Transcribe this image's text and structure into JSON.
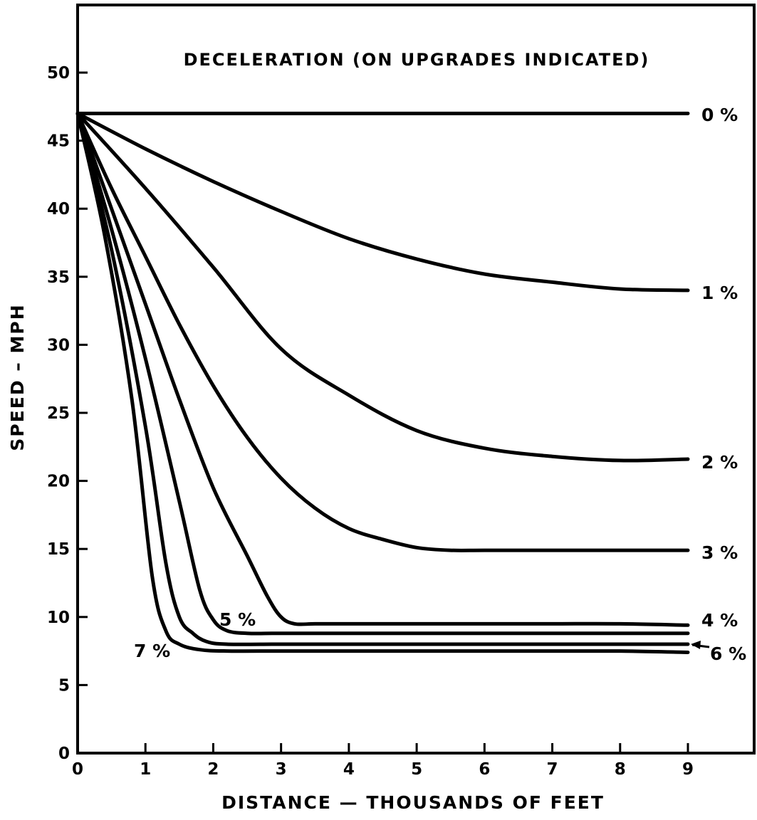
{
  "chart_data": {
    "type": "line",
    "title": "DECELERATION  (ON  UPGRADES  INDICATED)",
    "xlabel": "DISTANCE — THOUSANDS  OF  FEET",
    "ylabel": "SPEED – MPH",
    "xlim": [
      0,
      10
    ],
    "ylim": [
      0,
      55
    ],
    "xticks": [
      0,
      1,
      2,
      3,
      4,
      5,
      6,
      7,
      8,
      9
    ],
    "yticks": [
      0,
      5,
      10,
      15,
      20,
      25,
      30,
      35,
      40,
      45,
      50
    ],
    "grid": false,
    "legend": "none",
    "series": [
      {
        "name": "0 %",
        "x": [
          0,
          9
        ],
        "y": [
          47,
          47
        ]
      },
      {
        "name": "1 %",
        "x": [
          0,
          1,
          2,
          3,
          4,
          5,
          6,
          7,
          8,
          9
        ],
        "y": [
          47,
          44.4,
          42.0,
          39.8,
          37.8,
          36.3,
          35.2,
          34.6,
          34.1,
          34.0
        ]
      },
      {
        "name": "2 %",
        "x": [
          0,
          1,
          2,
          3,
          4,
          5,
          6,
          7,
          8,
          9
        ],
        "y": [
          47,
          41.5,
          35.7,
          29.7,
          26.3,
          23.7,
          22.4,
          21.8,
          21.5,
          21.6
        ]
      },
      {
        "name": "3 %",
        "x": [
          0,
          0.5,
          1,
          1.5,
          2,
          2.5,
          3,
          3.5,
          4,
          4.5,
          5,
          5.5,
          6,
          7,
          8,
          9
        ],
        "y": [
          47,
          41.5,
          36.5,
          31.5,
          27.0,
          23.2,
          20.2,
          18.0,
          16.5,
          15.7,
          15.1,
          14.9,
          14.9,
          14.9,
          14.9,
          14.9
        ]
      },
      {
        "name": "4 %",
        "x": [
          0,
          0.5,
          1,
          1.5,
          2,
          2.5,
          2.8,
          3.0,
          3.2,
          3.5,
          4,
          5,
          6,
          7,
          8,
          9
        ],
        "y": [
          47,
          40.0,
          33.0,
          26.0,
          19.5,
          14.5,
          11.5,
          10.0,
          9.5,
          9.5,
          9.5,
          9.5,
          9.5,
          9.5,
          9.5,
          9.4
        ]
      },
      {
        "name": "5 %",
        "x": [
          0,
          0.5,
          1,
          1.5,
          1.8,
          2.0,
          2.2,
          2.5,
          3,
          4,
          5,
          6,
          7,
          8,
          9
        ],
        "y": [
          47,
          38.5,
          29.0,
          18.5,
          12.0,
          9.8,
          9.0,
          8.8,
          8.8,
          8.8,
          8.8,
          8.8,
          8.8,
          8.8,
          8.8
        ]
      },
      {
        "name": "6 %",
        "x": [
          0,
          0.5,
          1,
          1.3,
          1.5,
          1.7,
          1.9,
          2.2,
          3,
          4,
          5,
          6,
          7,
          8,
          9
        ],
        "y": [
          47,
          37.0,
          24.0,
          14.0,
          10.0,
          8.8,
          8.2,
          8.0,
          8.0,
          8.0,
          8.0,
          8.0,
          8.0,
          8.0,
          8.0
        ]
      },
      {
        "name": "7 %",
        "x": [
          0,
          0.4,
          0.8,
          1.1,
          1.3,
          1.5,
          1.8,
          2.2,
          3,
          4,
          5,
          6,
          7,
          8,
          9
        ],
        "y": [
          47,
          38.0,
          26.0,
          13.0,
          9.0,
          8.0,
          7.6,
          7.5,
          7.5,
          7.5,
          7.5,
          7.5,
          7.5,
          7.5,
          7.4
        ]
      }
    ]
  }
}
